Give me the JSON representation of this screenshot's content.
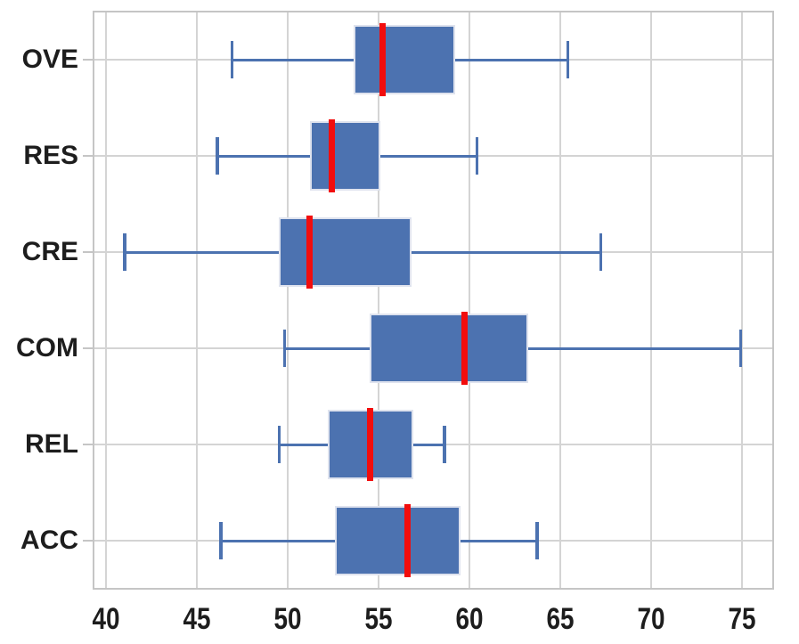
{
  "chart_data": {
    "type": "boxplot",
    "orientation": "horizontal",
    "title": "",
    "xlabel": "",
    "ylabel": "",
    "categories": [
      "OVE",
      "RES",
      "CRE",
      "COM",
      "REL",
      "ACC"
    ],
    "stats": [
      {
        "label": "OVE",
        "whisker_low": 46.9,
        "q1": 53.6,
        "median": 55.2,
        "q3": 59.2,
        "whisker_high": 65.4
      },
      {
        "label": "RES",
        "whisker_low": 46.1,
        "q1": 51.2,
        "median": 52.4,
        "q3": 55.1,
        "whisker_high": 60.4
      },
      {
        "label": "CRE",
        "whisker_low": 41.0,
        "q1": 49.5,
        "median": 51.2,
        "q3": 56.8,
        "whisker_high": 67.2
      },
      {
        "label": "COM",
        "whisker_low": 49.8,
        "q1": 54.5,
        "median": 59.7,
        "q3": 63.2,
        "whisker_high": 74.9
      },
      {
        "label": "REL",
        "whisker_low": 49.5,
        "q1": 52.2,
        "median": 54.5,
        "q3": 56.9,
        "whisker_high": 58.6
      },
      {
        "label": "ACC",
        "whisker_low": 46.3,
        "q1": 52.6,
        "median": 56.6,
        "q3": 59.5,
        "whisker_high": 63.7
      }
    ],
    "x_ticks": [
      40,
      45,
      50,
      55,
      60,
      65,
      70,
      75
    ],
    "xlim": [
      39.3,
      76.7
    ],
    "grid": true,
    "legend": null,
    "colors": {
      "box_fill": "#4c72b0",
      "box_edge": "#dfe3ee",
      "whisker": "#4c72b0",
      "median": "#f20d0d",
      "grid": "#d4d4d4",
      "spine": "#c5c5c5",
      "tick_label": "#1d1d1d"
    }
  }
}
